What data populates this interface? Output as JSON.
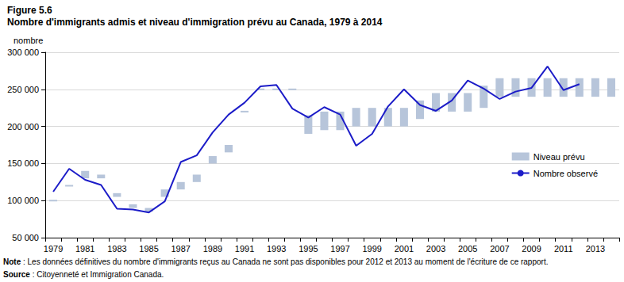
{
  "chart_data": {
    "type": "line",
    "subtitle": "Figure 5.6",
    "title": "Nombre d'immigrants admis et niveau d'immigration prévu au Canada, 1979 à 2014",
    "ylabel": "nombre",
    "notes": [
      "Note : Les données définitives du nombre d'immigrants reçus au Canada ne sont pas disponibles pour 2012 et 2013 au moment de l'écriture de ce rapport.",
      "Source : Citoyenneté et Immigration Canada."
    ],
    "categories": [
      "1979",
      null,
      "1981",
      null,
      "1983",
      null,
      "1985",
      null,
      "1987",
      null,
      "1989",
      null,
      "1991",
      null,
      "1993",
      null,
      "1995",
      null,
      "1997",
      null,
      "1999",
      null,
      "2001",
      null,
      "2003",
      null,
      "2005",
      null,
      "2007",
      null,
      "2009",
      null,
      "2011",
      null,
      "2013",
      null
    ],
    "ylim": [
      50000,
      300000
    ],
    "yticks": [
      {
        "value": 50000,
        "label": "50 000"
      },
      {
        "value": 100000,
        "label": "100 000"
      },
      {
        "value": 150000,
        "label": "150 000"
      },
      {
        "value": 200000,
        "label": "200 000"
      },
      {
        "value": 250000,
        "label": "250 000"
      },
      {
        "value": 300000,
        "label": "300 000"
      }
    ],
    "grid": true,
    "legend": "right",
    "series": [
      {
        "name": "Niveau prévu",
        "type": "range",
        "color": "#b7c5da",
        "low": [
          100000,
          120000,
          130000,
          130000,
          105000,
          90000,
          85000,
          105000,
          115000,
          125000,
          150000,
          165000,
          220000,
          250000,
          250000,
          250000,
          190000,
          195000,
          195000,
          200000,
          200000,
          200000,
          200000,
          210000,
          220000,
          220000,
          220000,
          225000,
          240000,
          240000,
          240000,
          240000,
          240000,
          240000,
          240000,
          240000
        ],
        "high": [
          100000,
          120000,
          140000,
          135000,
          110000,
          95000,
          90000,
          115000,
          125000,
          135000,
          160000,
          175000,
          220000,
          250000,
          250000,
          250000,
          215000,
          220000,
          220000,
          225000,
          225000,
          225000,
          225000,
          235000,
          245000,
          245000,
          245000,
          255000,
          265000,
          265000,
          265000,
          265000,
          265000,
          265000,
          265000,
          265000
        ]
      },
      {
        "name": "Nombre observé",
        "type": "line",
        "color": "#1c1cc8",
        "values": [
          112000,
          143000,
          128000,
          121000,
          89000,
          88000,
          84000,
          99000,
          152000,
          161000,
          192000,
          216000,
          232000,
          254000,
          256000,
          224000,
          212000,
          226000,
          216000,
          174000,
          190000,
          227000,
          250000,
          229000,
          221000,
          235000,
          262000,
          251000,
          237000,
          247000,
          252000,
          281000,
          249000,
          257000,
          null,
          null
        ]
      }
    ]
  }
}
